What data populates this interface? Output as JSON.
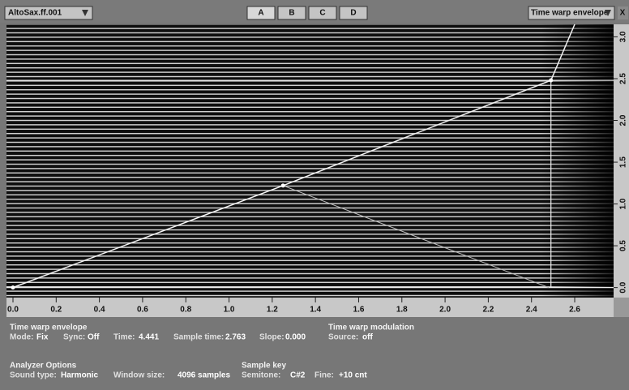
{
  "toolbar": {
    "source": "AltoSax.ff.001",
    "tabs": [
      "A",
      "B",
      "C",
      "D"
    ],
    "view": "Time warp envelope",
    "close": "X"
  },
  "plot": {
    "xlim": [
      -0.03,
      2.78
    ],
    "ylim": [
      -0.12,
      3.15
    ],
    "xticks": [
      {
        "value": 0,
        "label": "0.0"
      },
      0.2,
      0.4,
      0.6,
      0.8,
      {
        "value": 1,
        "label": "1.0"
      },
      1.2,
      1.4,
      1.6,
      1.8,
      {
        "value": 2,
        "label": "2.0"
      },
      2.2,
      2.4,
      2.6
    ],
    "yticks": [
      {
        "value": 0,
        "label": "0.0"
      },
      0.5,
      {
        "value": 1,
        "label": "1.0"
      },
      1.5,
      {
        "value": 2,
        "label": "2.0"
      },
      2.5,
      {
        "value": 3,
        "label": "3.0"
      }
    ],
    "envelope": {
      "x": [
        0,
        1.25,
        2.49,
        2.6
      ],
      "y": [
        0,
        1.22,
        2.48,
        3.15
      ]
    },
    "slope_line": {
      "x": [
        1.25,
        2.48
      ],
      "y": [
        1.22,
        0
      ]
    },
    "cursor": {
      "x": 2.49,
      "y": 2.48
    }
  },
  "info": {
    "time_warp_envelope": {
      "title": "Time warp envelope",
      "fields": [
        {
          "label": "Mode:",
          "value": "Fix"
        },
        {
          "label": "Sync:",
          "value": "Off"
        },
        {
          "label": "Time:",
          "value": "4.441"
        },
        {
          "label": "Sample time:",
          "value": "2.763"
        },
        {
          "label": "Slope:",
          "value": "0.000"
        }
      ]
    },
    "time_warp_modulation": {
      "title": "Time warp modulation",
      "fields": [
        {
          "label": "Source:",
          "value": "off"
        }
      ]
    },
    "analyzer_options": {
      "title": "Analyzer Options",
      "fields": [
        {
          "label": "Sound type:",
          "value": "Harmonic"
        },
        {
          "label": "Window size:",
          "value": "4096 samples"
        }
      ]
    },
    "sample_key": {
      "title": "Sample key",
      "fields": [
        {
          "label": "Semitone:",
          "value": "C#2"
        },
        {
          "label": "Fine:",
          "value": "+10 cnt"
        }
      ]
    }
  }
}
